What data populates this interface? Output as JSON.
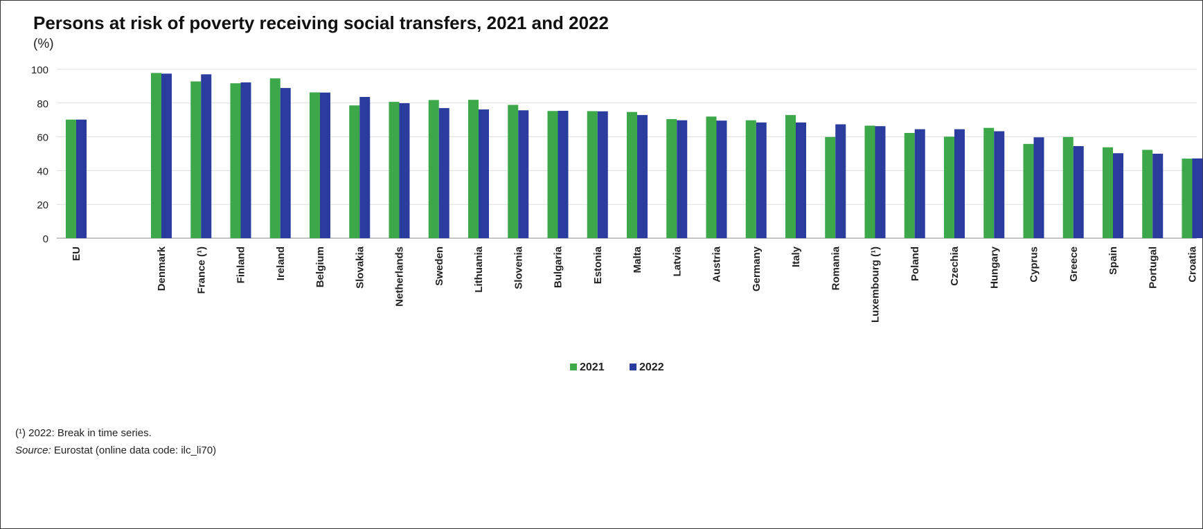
{
  "title": "Persons at risk of poverty receiving social transfers, 2021 and 2022",
  "unit": "(%)",
  "footnote": "(¹) 2022: Break in time series.",
  "source_label": "Source:",
  "source_text": " Eurostat (online data code: ilc_li70)",
  "colors": {
    "2021": "#3ca84a",
    "2022": "#2a3d9f"
  },
  "chart_data": {
    "type": "bar",
    "title": "Persons at risk of poverty receiving social transfers, 2021 and 2022",
    "ylabel": "(%)",
    "ylim": [
      0,
      100
    ],
    "yticks": [
      0,
      20,
      40,
      60,
      80,
      100
    ],
    "grid": true,
    "legend_position": "bottom-center",
    "categories": [
      "EU",
      "Denmark",
      "France (¹)",
      "Finland",
      "Ireland",
      "Belgium",
      "Slovakia",
      "Netherlands",
      "Sweden",
      "Lithuania",
      "Slovenia",
      "Bulgaria",
      "Estonia",
      "Malta",
      "Latvia",
      "Austria",
      "Germany",
      "Italy",
      "Romania",
      "Luxembourg (¹)",
      "Poland",
      "Czechia",
      "Hungary",
      "Cyprus",
      "Greece",
      "Spain",
      "Portugal",
      "Croatia"
    ],
    "series": [
      {
        "name": "2021",
        "values": [
          70.2,
          97.8,
          92.8,
          91.7,
          94.6,
          86.3,
          78.6,
          80.7,
          81.8,
          81.9,
          78.9,
          75.3,
          75.2,
          74.7,
          70.5,
          72.0,
          69.8,
          72.9,
          59.9,
          66.6,
          62.3,
          60.1,
          65.3,
          55.8,
          59.9,
          53.8,
          52.3,
          47.1
        ]
      },
      {
        "name": "2022",
        "values": [
          70.2,
          97.4,
          97.0,
          92.2,
          88.9,
          86.2,
          83.6,
          79.9,
          77.0,
          76.2,
          75.7,
          75.4,
          75.1,
          72.9,
          69.8,
          69.6,
          68.5,
          68.5,
          67.4,
          66.3,
          64.5,
          64.5,
          63.3,
          59.7,
          54.5,
          50.3,
          50.0,
          47.2
        ]
      }
    ]
  }
}
